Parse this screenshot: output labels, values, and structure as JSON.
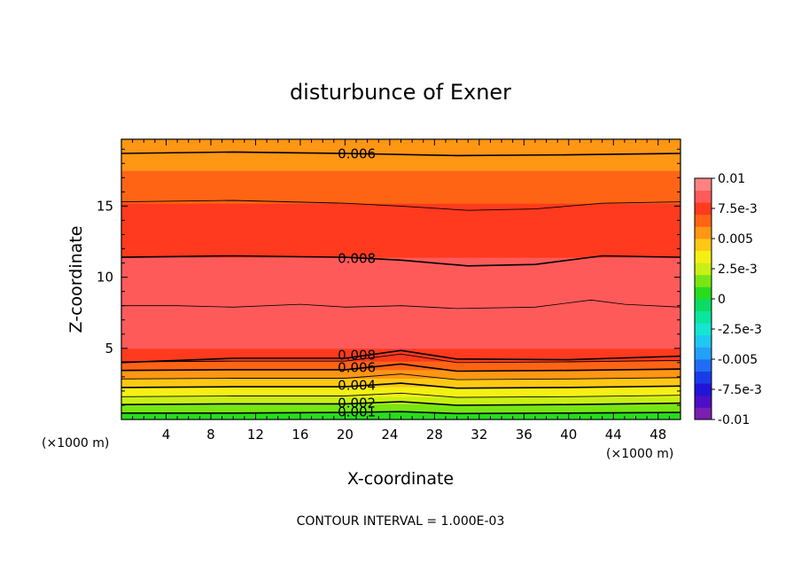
{
  "chart_data": {
    "type": "heatmap",
    "subtype": "filled-contour",
    "title": "disturbunce of Exner",
    "xlabel": "X-coordinate",
    "ylabel": "Z-coordinate",
    "x_unit_label": "(×1000 m)",
    "y_unit_label": "(×1000 m)",
    "xlim": [
      0,
      50
    ],
    "ylim": [
      0,
      19.7
    ],
    "x_ticks": [
      4,
      8,
      12,
      16,
      20,
      24,
      28,
      32,
      36,
      40,
      44,
      48
    ],
    "y_ticks": [
      5,
      10,
      15
    ],
    "contour_interval_text": "CONTOUR INTERVAL = 1.000E-03",
    "colorbar": {
      "range": [
        -0.01,
        0.01
      ],
      "tick_labels": [
        "0.01",
        "7.5e-3",
        "0.005",
        "2.5e-3",
        "0",
        "-2.5e-3",
        "-0.005",
        "-7.5e-3",
        "-0.01"
      ],
      "tick_values": [
        0.01,
        0.0075,
        0.005,
        0.0025,
        0,
        -0.0025,
        -0.005,
        -0.0075,
        -0.01
      ],
      "levels": [
        {
          "from": -0.01,
          "to": -0.009,
          "color": "#7a1fb0"
        },
        {
          "from": -0.009,
          "to": -0.008,
          "color": "#4b0fc8"
        },
        {
          "from": -0.008,
          "to": -0.007,
          "color": "#1f14d8"
        },
        {
          "from": -0.007,
          "to": -0.006,
          "color": "#1a3ce8"
        },
        {
          "from": -0.006,
          "to": -0.005,
          "color": "#1e6ef5"
        },
        {
          "from": -0.005,
          "to": -0.004,
          "color": "#22a0fa"
        },
        {
          "from": -0.004,
          "to": -0.003,
          "color": "#1ec8f0"
        },
        {
          "from": -0.003,
          "to": -0.002,
          "color": "#14e6d2"
        },
        {
          "from": -0.002,
          "to": -0.001,
          "color": "#0ae6a0"
        },
        {
          "from": -0.001,
          "to": 0.0,
          "color": "#0adc64"
        },
        {
          "from": 0.0,
          "to": 0.001,
          "color": "#28dc1e"
        },
        {
          "from": 0.001,
          "to": 0.002,
          "color": "#78e614"
        },
        {
          "from": 0.002,
          "to": 0.003,
          "color": "#c8f014"
        },
        {
          "from": 0.003,
          "to": 0.004,
          "color": "#f5f014"
        },
        {
          "from": 0.004,
          "to": 0.005,
          "color": "#ffc814"
        },
        {
          "from": 0.005,
          "to": 0.006,
          "color": "#ff9614"
        },
        {
          "from": 0.006,
          "to": 0.007,
          "color": "#ff6414"
        },
        {
          "from": 0.007,
          "to": 0.008,
          "color": "#ff3a1e"
        },
        {
          "from": 0.008,
          "to": 0.009,
          "color": "#ff5a5a"
        },
        {
          "from": 0.009,
          "to": 0.01,
          "color": "#ff8282"
        }
      ]
    },
    "vertical_profile": [
      {
        "z_from": 0.0,
        "z_to": 0.5,
        "value_band": [
          0.0,
          0.001
        ]
      },
      {
        "z_from": 0.5,
        "z_to": 1.1,
        "value_band": [
          0.001,
          0.002
        ]
      },
      {
        "z_from": 1.1,
        "z_to": 1.6,
        "value_band": [
          0.002,
          0.003
        ]
      },
      {
        "z_from": 1.6,
        "z_to": 2.3,
        "value_band": [
          0.003,
          0.004
        ]
      },
      {
        "z_from": 2.3,
        "z_to": 2.9,
        "value_band": [
          0.004,
          0.005
        ]
      },
      {
        "z_from": 2.9,
        "z_to": 3.5,
        "value_band": [
          0.005,
          0.006
        ]
      },
      {
        "z_from": 3.5,
        "z_to": 4.1,
        "value_band": [
          0.006,
          0.007
        ]
      },
      {
        "z_from": 4.1,
        "z_to": 5.0,
        "value_band": [
          0.007,
          0.008
        ]
      },
      {
        "z_from": 5.0,
        "z_to": 8.0,
        "value_band": [
          0.008,
          0.009
        ]
      },
      {
        "z_from": 8.0,
        "z_to": 11.4,
        "value_band": [
          0.008,
          0.009
        ]
      },
      {
        "z_from": 11.4,
        "z_to": 15.2,
        "value_band": [
          0.007,
          0.008
        ]
      },
      {
        "z_from": 15.2,
        "z_to": 17.5,
        "value_band": [
          0.006,
          0.007
        ]
      },
      {
        "z_from": 17.5,
        "z_to": 19.7,
        "value_band": [
          0.005,
          0.006
        ]
      }
    ],
    "contours": [
      {
        "level": 0.001,
        "label": "0.001",
        "points": [
          [
            0,
            0.45
          ],
          [
            10,
            0.45
          ],
          [
            20,
            0.5
          ],
          [
            25,
            0.55
          ],
          [
            30,
            0.42
          ],
          [
            40,
            0.45
          ],
          [
            50,
            0.5
          ]
        ]
      },
      {
        "level": 0.002,
        "label": "0.002",
        "points": [
          [
            0,
            1.05
          ],
          [
            10,
            1.1
          ],
          [
            20,
            1.1
          ],
          [
            25,
            1.25
          ],
          [
            30,
            1.0
          ],
          [
            40,
            1.05
          ],
          [
            50,
            1.15
          ]
        ]
      },
      {
        "level": 0.003,
        "label": "",
        "points": [
          [
            0,
            1.6
          ],
          [
            10,
            1.65
          ],
          [
            20,
            1.65
          ],
          [
            25,
            1.85
          ],
          [
            30,
            1.55
          ],
          [
            40,
            1.6
          ],
          [
            50,
            1.7
          ]
        ]
      },
      {
        "level": 0.004,
        "label": "0.004",
        "points": [
          [
            0,
            2.25
          ],
          [
            10,
            2.3
          ],
          [
            20,
            2.3
          ],
          [
            25,
            2.55
          ],
          [
            30,
            2.2
          ],
          [
            40,
            2.25
          ],
          [
            50,
            2.35
          ]
        ]
      },
      {
        "level": 0.005,
        "label": "",
        "points": [
          [
            0,
            2.85
          ],
          [
            10,
            2.9
          ],
          [
            20,
            2.9
          ],
          [
            25,
            3.2
          ],
          [
            30,
            2.8
          ],
          [
            40,
            2.85
          ],
          [
            50,
            2.95
          ]
        ]
      },
      {
        "level": 0.006,
        "label": "0.006",
        "points": [
          [
            0,
            3.45
          ],
          [
            10,
            3.5
          ],
          [
            20,
            3.5
          ],
          [
            25,
            3.9
          ],
          [
            30,
            3.4
          ],
          [
            40,
            3.45
          ],
          [
            50,
            3.55
          ]
        ]
      },
      {
        "level": 0.007,
        "label": "",
        "points": [
          [
            0,
            4.05
          ],
          [
            10,
            4.1
          ],
          [
            20,
            4.1
          ],
          [
            25,
            4.6
          ],
          [
            30,
            4.0
          ],
          [
            40,
            4.05
          ],
          [
            50,
            4.15
          ]
        ]
      },
      {
        "level": 0.008,
        "label": "0.008",
        "points": [
          [
            0,
            4.0
          ],
          [
            10,
            4.3
          ],
          [
            20,
            4.3
          ],
          [
            25,
            4.85
          ],
          [
            30,
            4.25
          ],
          [
            40,
            4.2
          ],
          [
            50,
            4.45
          ]
        ]
      },
      {
        "level": 0.008,
        "label": "0.008",
        "points": [
          [
            0,
            11.4
          ],
          [
            10,
            11.5
          ],
          [
            20,
            11.4
          ],
          [
            25,
            11.2
          ],
          [
            31,
            10.8
          ],
          [
            37,
            10.9
          ],
          [
            43,
            11.5
          ],
          [
            50,
            11.4
          ]
        ]
      },
      {
        "level": 0.007,
        "label": "",
        "points": [
          [
            0,
            15.3
          ],
          [
            10,
            15.4
          ],
          [
            20,
            15.2
          ],
          [
            25,
            15.0
          ],
          [
            31,
            14.7
          ],
          [
            37,
            14.8
          ],
          [
            43,
            15.2
          ],
          [
            50,
            15.3
          ]
        ]
      },
      {
        "level": 0.006,
        "label": "0.006",
        "points": [
          [
            0,
            18.7
          ],
          [
            10,
            18.8
          ],
          [
            20,
            18.7
          ],
          [
            30,
            18.55
          ],
          [
            40,
            18.6
          ],
          [
            50,
            18.7
          ]
        ]
      }
    ],
    "minor_contours": [
      {
        "level": 0.009,
        "points": [
          [
            0,
            8.0
          ],
          [
            5,
            8.0
          ],
          [
            10,
            7.9
          ],
          [
            16,
            8.1
          ],
          [
            20,
            7.9
          ],
          [
            25,
            8.0
          ],
          [
            30,
            7.8
          ],
          [
            37,
            7.9
          ],
          [
            42,
            8.4
          ],
          [
            45,
            8.1
          ],
          [
            50,
            7.9
          ]
        ]
      }
    ]
  }
}
